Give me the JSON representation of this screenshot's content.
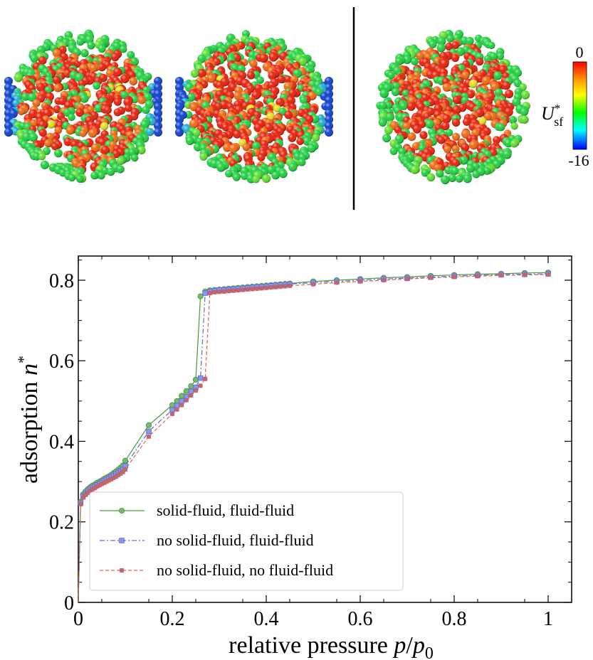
{
  "colorbar": {
    "top_label": "0",
    "bottom_label": "-16",
    "label_main": "U",
    "label_sup": "*",
    "label_sub": "sf",
    "colors": [
      "#ff0000",
      "#ffa500",
      "#ffff00",
      "#00ff00",
      "#00ffff",
      "#0000ff"
    ]
  },
  "spheres": {
    "palette": {
      "red": "#e8200a",
      "orange": "#f06a10",
      "green": "#22d040",
      "lime": "#60e030",
      "blue": "#1040d0",
      "cyan": "#20b0d0",
      "yellow": "#e0e020"
    }
  },
  "chart_data": {
    "type": "line",
    "xlabel_prefix": "relative pressure ",
    "xlabel_var": "p",
    "xlabel_sep": "/",
    "xlabel_var2": "p",
    "xlabel_sub": "0",
    "ylabel_prefix": "adsorption ",
    "ylabel_var": "n",
    "ylabel_sup": "*",
    "xlim": [
      0,
      1.05
    ],
    "ylim": [
      0,
      0.86
    ],
    "xticks": [
      0,
      0.2,
      0.4,
      0.6,
      0.8,
      1
    ],
    "xtick_labels": [
      "0",
      "0.2",
      "0.4",
      "0.6",
      "0.8",
      "1"
    ],
    "yticks": [
      0,
      0.2,
      0.4,
      0.6,
      0.8
    ],
    "ytick_labels": [
      "0",
      "0.2",
      "0.4",
      "0.6",
      "0.8"
    ],
    "legend_position": "bottom-left",
    "series": [
      {
        "name": "solid-fluid, fluid-fluid",
        "color": "#4a9a3a",
        "marker_fill": "#7ab872",
        "marker": "circle",
        "dash": "",
        "x": [
          0.0,
          0.005,
          0.01,
          0.015,
          0.02,
          0.025,
          0.03,
          0.035,
          0.04,
          0.045,
          0.05,
          0.055,
          0.06,
          0.065,
          0.07,
          0.075,
          0.08,
          0.085,
          0.09,
          0.095,
          0.1,
          0.15,
          0.2,
          0.21,
          0.22,
          0.23,
          0.24,
          0.25,
          0.26,
          0.27,
          0.28,
          0.29,
          0.3,
          0.31,
          0.32,
          0.33,
          0.34,
          0.35,
          0.36,
          0.37,
          0.38,
          0.39,
          0.4,
          0.41,
          0.42,
          0.43,
          0.44,
          0.45,
          0.5,
          0.55,
          0.6,
          0.65,
          0.7,
          0.75,
          0.8,
          0.85,
          0.9,
          0.95,
          1.0
        ],
        "y": [
          0.0,
          0.25,
          0.268,
          0.275,
          0.281,
          0.286,
          0.29,
          0.293,
          0.297,
          0.3,
          0.303,
          0.307,
          0.31,
          0.313,
          0.317,
          0.321,
          0.325,
          0.33,
          0.335,
          0.34,
          0.352,
          0.44,
          0.49,
          0.5,
          0.513,
          0.525,
          0.537,
          0.553,
          0.76,
          0.772,
          0.775,
          0.776,
          0.777,
          0.778,
          0.779,
          0.78,
          0.781,
          0.782,
          0.783,
          0.784,
          0.785,
          0.786,
          0.787,
          0.788,
          0.789,
          0.79,
          0.791,
          0.792,
          0.797,
          0.8,
          0.803,
          0.806,
          0.808,
          0.811,
          0.813,
          0.815,
          0.816,
          0.818,
          0.819
        ]
      },
      {
        "name": "no solid-fluid, fluid-fluid",
        "color": "#5a6cd8",
        "marker_fill": "#8a98e8",
        "marker": "square",
        "dash": "7,3,2,3",
        "x": [
          0.0,
          0.005,
          0.01,
          0.015,
          0.02,
          0.025,
          0.03,
          0.035,
          0.04,
          0.045,
          0.05,
          0.055,
          0.06,
          0.065,
          0.07,
          0.075,
          0.08,
          0.085,
          0.09,
          0.095,
          0.1,
          0.15,
          0.2,
          0.21,
          0.22,
          0.23,
          0.24,
          0.25,
          0.26,
          0.27,
          0.28,
          0.29,
          0.3,
          0.31,
          0.32,
          0.33,
          0.34,
          0.35,
          0.36,
          0.37,
          0.38,
          0.39,
          0.4,
          0.41,
          0.42,
          0.43,
          0.44,
          0.45,
          0.5,
          0.55,
          0.6,
          0.65,
          0.7,
          0.75,
          0.8,
          0.85,
          0.9,
          0.95,
          1.0
        ],
        "y": [
          0.0,
          0.247,
          0.263,
          0.27,
          0.276,
          0.281,
          0.285,
          0.288,
          0.292,
          0.295,
          0.298,
          0.302,
          0.305,
          0.308,
          0.312,
          0.315,
          0.319,
          0.323,
          0.327,
          0.331,
          0.339,
          0.425,
          0.478,
          0.489,
          0.5,
          0.511,
          0.524,
          0.534,
          0.557,
          0.768,
          0.772,
          0.774,
          0.775,
          0.776,
          0.777,
          0.778,
          0.779,
          0.78,
          0.781,
          0.782,
          0.783,
          0.784,
          0.785,
          0.786,
          0.787,
          0.788,
          0.789,
          0.79,
          0.794,
          0.797,
          0.8,
          0.803,
          0.805,
          0.808,
          0.81,
          0.812,
          0.814,
          0.815,
          0.816
        ]
      },
      {
        "name": "no solid-fluid, no fluid-fluid",
        "color": "#e86050",
        "marker_fill": "#9a6a8a",
        "marker": "x",
        "dash": "5,3",
        "x": [
          0.0,
          0.005,
          0.01,
          0.015,
          0.02,
          0.025,
          0.03,
          0.035,
          0.04,
          0.045,
          0.05,
          0.055,
          0.06,
          0.065,
          0.07,
          0.075,
          0.08,
          0.085,
          0.09,
          0.095,
          0.1,
          0.15,
          0.2,
          0.21,
          0.22,
          0.23,
          0.24,
          0.25,
          0.26,
          0.27,
          0.28,
          0.29,
          0.3,
          0.31,
          0.32,
          0.33,
          0.34,
          0.35,
          0.36,
          0.37,
          0.38,
          0.39,
          0.4,
          0.41,
          0.42,
          0.43,
          0.44,
          0.45,
          0.5,
          0.55,
          0.6,
          0.65,
          0.7,
          0.75,
          0.8,
          0.85,
          0.9,
          0.95,
          1.0
        ],
        "y": [
          0.0,
          0.244,
          0.26,
          0.267,
          0.272,
          0.277,
          0.281,
          0.284,
          0.288,
          0.291,
          0.294,
          0.297,
          0.3,
          0.303,
          0.306,
          0.309,
          0.312,
          0.316,
          0.32,
          0.324,
          0.33,
          0.412,
          0.468,
          0.479,
          0.49,
          0.502,
          0.514,
          0.526,
          0.538,
          0.555,
          0.768,
          0.77,
          0.771,
          0.772,
          0.773,
          0.774,
          0.775,
          0.776,
          0.777,
          0.778,
          0.779,
          0.78,
          0.781,
          0.782,
          0.783,
          0.784,
          0.785,
          0.786,
          0.79,
          0.794,
          0.797,
          0.8,
          0.803,
          0.806,
          0.808,
          0.81,
          0.812,
          0.813,
          0.814
        ]
      }
    ]
  }
}
